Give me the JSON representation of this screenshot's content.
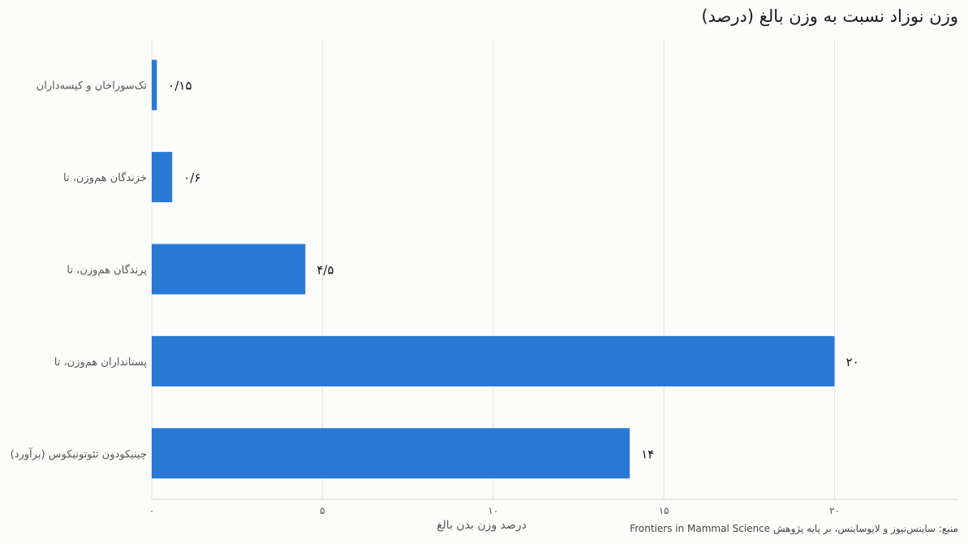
{
  "chart_data": {
    "type": "bar",
    "orientation": "horizontal",
    "title": "وزن نوزاد نسبت به وزن بالغ (درصد)",
    "xlabel": "درصد وزن بدن بالغ",
    "categories": [
      "تک‌سوراخان و کیسه‌داران",
      "خزندگان هم‌وزن، تا",
      "پرندگان هم‌وزن، تا",
      "پستانداران هم‌وزن، تا",
      "چینیکودون تئوتونیکوس (برآورد)"
    ],
    "values": [
      0.15,
      0.6,
      4.5,
      20,
      14
    ],
    "value_labels": [
      "۰/۱۵",
      "۰/۶",
      "۴/۵",
      "۲۰",
      "۱۴"
    ],
    "xlim": [
      0,
      23.6
    ],
    "x_ticks": [
      0,
      5,
      10,
      15,
      20
    ],
    "x_tick_labels": [
      "۰",
      "۵",
      "۱۰",
      "۱۵",
      "۲۰"
    ],
    "grid": "vertical",
    "bar_color": "#2979d4",
    "source": "منبع: ساینس‌نیوز و لایوساینس، بر پایه پژوهش Frontiers in Mammal Science"
  }
}
